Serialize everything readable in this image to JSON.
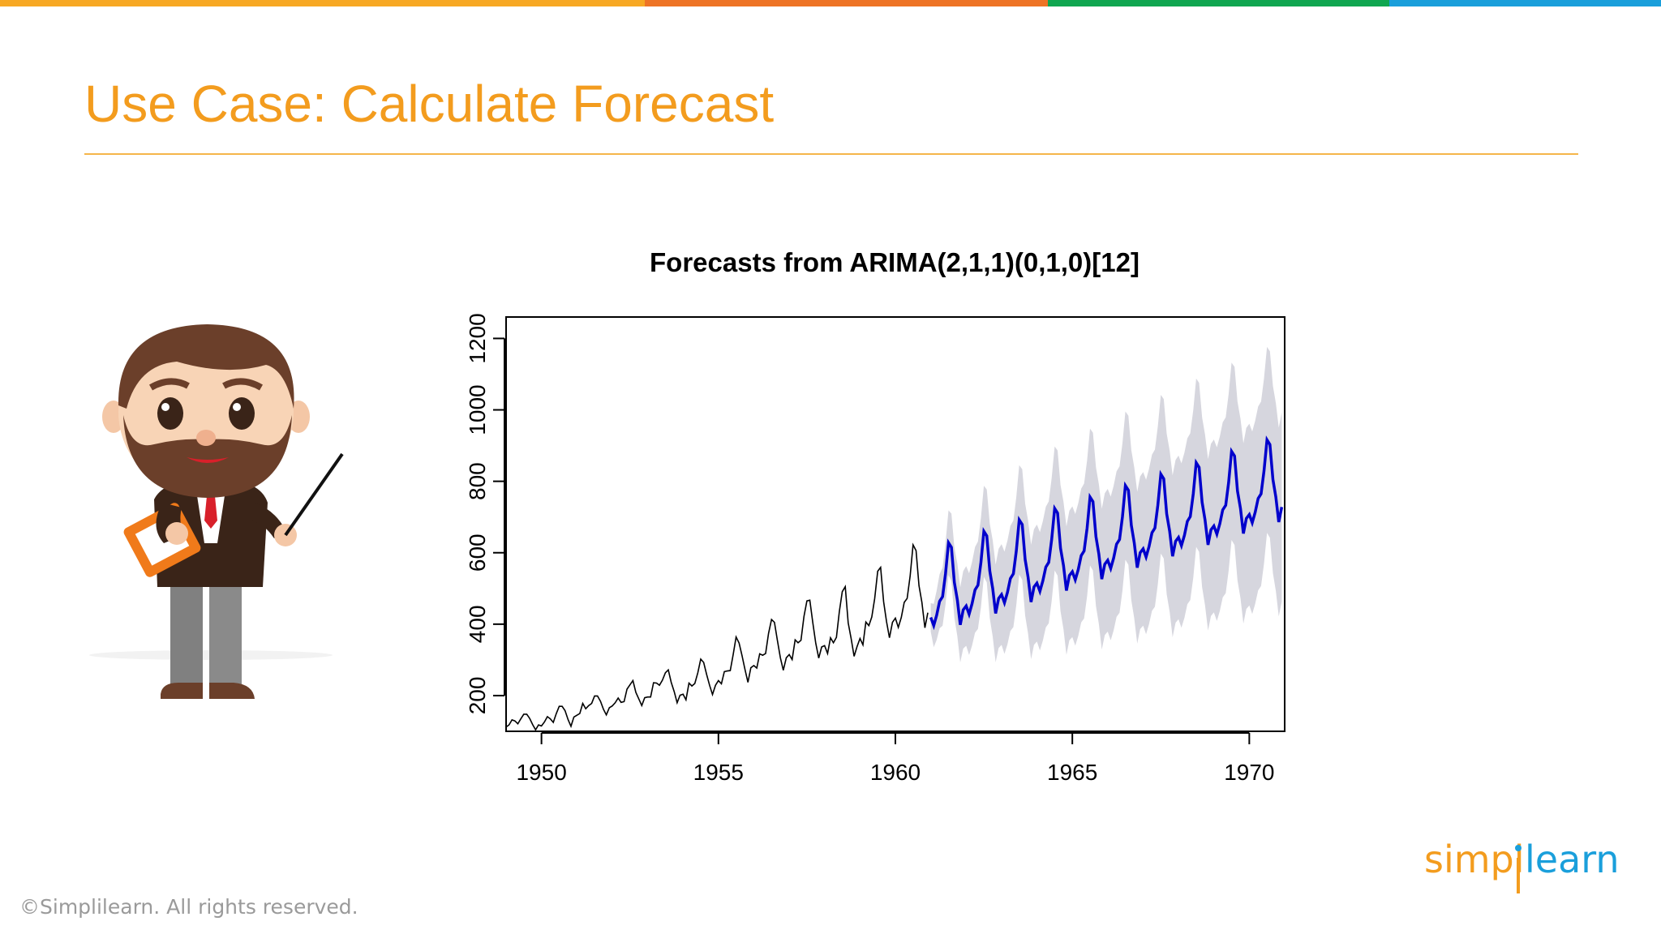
{
  "slide": {
    "title": "Use Case: Calculate Forecast",
    "footer": "©Simplilearn. All rights reserved.",
    "brand": {
      "part1": "simpl",
      "part2": "learn"
    },
    "topbar_colors": [
      "#F7A823",
      "#EE7426",
      "#10A650",
      "#1A9FDB"
    ],
    "accent_color": "#F39C1E"
  },
  "icons": {
    "presenter": "teacher-with-pointer-illustration",
    "logo": "simplilearn-logo"
  },
  "chart_data": {
    "type": "line",
    "title": "Forecasts from ARIMA(2,1,1)(0,1,0)[12]",
    "xlabel": "",
    "ylabel": "",
    "xlim": [
      1949,
      1971
    ],
    "ylim": [
      100,
      1260
    ],
    "x_ticks": [
      1950,
      1955,
      1960,
      1965,
      1970
    ],
    "y_ticks": [
      200,
      400,
      600,
      800,
      1000,
      1200
    ],
    "x_start": 1949,
    "frequency": 12,
    "grid": false,
    "legend": "none",
    "series": [
      {
        "role": "historical",
        "color": "#000000",
        "values": [
          112,
          118,
          132,
          129,
          121,
          135,
          148,
          148,
          136,
          119,
          104,
          118,
          115,
          126,
          141,
          135,
          125,
          149,
          170,
          170,
          158,
          133,
          114,
          140,
          145,
          150,
          178,
          163,
          172,
          178,
          199,
          199,
          184,
          162,
          146,
          166,
          171,
          180,
          193,
          181,
          183,
          218,
          230,
          242,
          209,
          191,
          172,
          194,
          196,
          196,
          236,
          235,
          229,
          243,
          264,
          272,
          237,
          211,
          180,
          201,
          204,
          188,
          235,
          227,
          234,
          264,
          302,
          293,
          259,
          229,
          203,
          229,
          242,
          233,
          267,
          269,
          270,
          315,
          364,
          347,
          312,
          274,
          237,
          278,
          284,
          277,
          317,
          313,
          318,
          374,
          413,
          405,
          355,
          306,
          271,
          306,
          315,
          301,
          356,
          348,
          355,
          422,
          465,
          467,
          404,
          347,
          305,
          336,
          340,
          318,
          362,
          348,
          363,
          435,
          491,
          505,
          404,
          359,
          310,
          337,
          360,
          342,
          406,
          396,
          420,
          472,
          548,
          559,
          463,
          407,
          362,
          405,
          417,
          391,
          419,
          461,
          472,
          535,
          622,
          606,
          508,
          461,
          390,
          432
        ]
      },
      {
        "role": "forecast",
        "color": "#0000CC",
        "band_color": "#D6D6DE",
        "start": 1961,
        "frequency": 12,
        "yearly_step": 32,
        "seasonal_base": [
          419,
          396,
          425,
          464,
          477,
          541,
          628,
          615,
          517,
          468,
          398,
          440
        ],
        "band_half_width_start": 40,
        "band_half_width_end": 265
      }
    ]
  }
}
